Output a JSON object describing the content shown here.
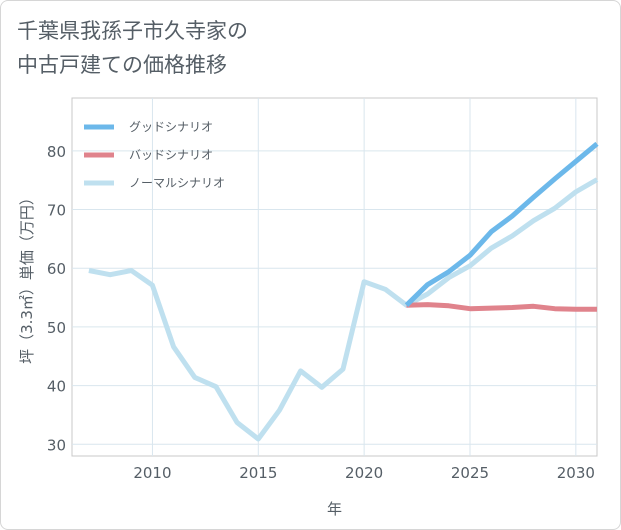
{
  "title_lines": [
    "千葉県我孫子市久寺家の",
    "中古戸建ての価格推移"
  ],
  "chart_data": {
    "type": "line",
    "title": "千葉県我孫子市久寺家の中古戸建ての価格推移",
    "xlabel": "年",
    "ylabel": "坪（3.3㎡）単価（万円）",
    "xlim": [
      2006.2,
      2031
    ],
    "ylim": [
      28,
      89
    ],
    "x_ticks": [
      2010,
      2015,
      2020,
      2025,
      2030
    ],
    "y_ticks": [
      30,
      40,
      50,
      60,
      70,
      80
    ],
    "grid": true,
    "legend_position": "top-left",
    "series": [
      {
        "name": "グッドシナリオ",
        "color": "#6cb8ea",
        "x": [
          2022,
          2023,
          2024,
          2025,
          2026,
          2027,
          2028,
          2029,
          2030,
          2031
        ],
        "y": [
          53.7,
          57.2,
          59.4,
          62.2,
          66.2,
          68.9,
          72.1,
          75.2,
          78.2,
          81.2
        ]
      },
      {
        "name": "バッドシナリオ",
        "color": "#e0838c",
        "x": [
          2022,
          2023,
          2024,
          2025,
          2026,
          2027,
          2028,
          2029,
          2030,
          2031
        ],
        "y": [
          53.7,
          53.8,
          53.6,
          53.1,
          53.2,
          53.3,
          53.5,
          53.1,
          53.0,
          53.0
        ]
      },
      {
        "name": "ノーマルシナリオ",
        "color": "#bfe0ef",
        "x": [
          2007,
          2008,
          2009,
          2010,
          2011,
          2012,
          2013,
          2014,
          2015,
          2016,
          2017,
          2018,
          2019,
          2020,
          2021,
          2022,
          2023,
          2024,
          2025,
          2026,
          2027,
          2028,
          2029,
          2030,
          2031
        ],
        "y": [
          59.6,
          58.9,
          59.6,
          57.1,
          46.6,
          41.4,
          39.8,
          33.7,
          30.9,
          35.8,
          42.5,
          39.7,
          42.8,
          57.7,
          56.4,
          53.7,
          55.6,
          58.4,
          60.4,
          63.4,
          65.5,
          68.1,
          70.2,
          73.0,
          75.1
        ]
      }
    ]
  }
}
